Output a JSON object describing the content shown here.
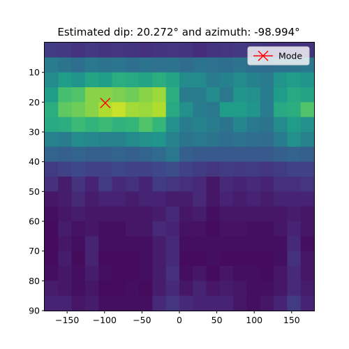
{
  "chart_data": {
    "type": "heatmap",
    "title": "Estimated dip: 20.272° and azimuth: -98.994°",
    "xlabel": "",
    "ylabel": "",
    "x_range": [
      -180,
      180
    ],
    "y_range": [
      0,
      90
    ],
    "y_inverted": true,
    "x_ticks": [
      -150,
      -100,
      -50,
      0,
      50,
      100,
      150
    ],
    "y_ticks": [
      10,
      20,
      30,
      40,
      50,
      60,
      70,
      80,
      90
    ],
    "grid": false,
    "colormap": "viridis",
    "grid_cols": 20,
    "grid_rows": 18,
    "cell_values_0_to_1": [
      [
        0.18,
        0.17,
        0.15,
        0.17,
        0.15,
        0.16,
        0.15,
        0.14,
        0.15,
        0.16,
        0.15,
        0.13,
        0.15,
        0.16,
        0.17,
        0.16,
        0.15,
        0.14,
        0.15,
        0.15
      ],
      [
        0.42,
        0.38,
        0.36,
        0.4,
        0.38,
        0.39,
        0.36,
        0.38,
        0.37,
        0.38,
        0.35,
        0.38,
        0.37,
        0.36,
        0.38,
        0.36,
        0.35,
        0.37,
        0.38,
        0.4
      ],
      [
        0.48,
        0.55,
        0.52,
        0.58,
        0.56,
        0.62,
        0.6,
        0.58,
        0.62,
        0.58,
        0.48,
        0.48,
        0.42,
        0.44,
        0.48,
        0.44,
        0.42,
        0.52,
        0.55,
        0.52
      ],
      [
        0.55,
        0.7,
        0.72,
        0.82,
        0.82,
        0.8,
        0.78,
        0.82,
        0.85,
        0.62,
        0.42,
        0.42,
        0.48,
        0.4,
        0.52,
        0.5,
        0.42,
        0.55,
        0.6,
        0.58
      ],
      [
        0.62,
        0.75,
        0.78,
        0.82,
        0.88,
        0.92,
        0.86,
        0.85,
        0.88,
        0.6,
        0.5,
        0.42,
        0.4,
        0.55,
        0.55,
        0.52,
        0.42,
        0.6,
        0.62,
        0.72
      ],
      [
        0.6,
        0.62,
        0.68,
        0.65,
        0.68,
        0.64,
        0.66,
        0.72,
        0.66,
        0.5,
        0.42,
        0.45,
        0.42,
        0.38,
        0.46,
        0.4,
        0.38,
        0.48,
        0.55,
        0.5
      ],
      [
        0.45,
        0.42,
        0.48,
        0.47,
        0.45,
        0.45,
        0.48,
        0.5,
        0.52,
        0.45,
        0.38,
        0.4,
        0.38,
        0.36,
        0.38,
        0.36,
        0.35,
        0.42,
        0.5,
        0.45
      ],
      [
        0.32,
        0.3,
        0.32,
        0.3,
        0.3,
        0.32,
        0.3,
        0.32,
        0.34,
        0.4,
        0.3,
        0.28,
        0.28,
        0.28,
        0.28,
        0.28,
        0.28,
        0.3,
        0.32,
        0.3
      ],
      [
        0.18,
        0.2,
        0.22,
        0.2,
        0.2,
        0.22,
        0.2,
        0.2,
        0.22,
        0.24,
        0.2,
        0.18,
        0.16,
        0.18,
        0.17,
        0.18,
        0.16,
        0.18,
        0.2,
        0.2
      ],
      [
        0.14,
        0.08,
        0.15,
        0.1,
        0.18,
        0.12,
        0.14,
        0.1,
        0.18,
        0.16,
        0.14,
        0.12,
        0.06,
        0.12,
        0.1,
        0.12,
        0.1,
        0.14,
        0.14,
        0.16
      ],
      [
        0.06,
        0.08,
        0.12,
        0.08,
        0.1,
        0.1,
        0.08,
        0.1,
        0.1,
        0.08,
        0.08,
        0.12,
        0.06,
        0.1,
        0.08,
        0.1,
        0.08,
        0.1,
        0.1,
        0.1
      ],
      [
        0.04,
        0.06,
        0.08,
        0.06,
        0.06,
        0.06,
        0.06,
        0.06,
        0.08,
        0.12,
        0.06,
        0.08,
        0.04,
        0.06,
        0.06,
        0.06,
        0.06,
        0.06,
        0.08,
        0.06
      ],
      [
        0.03,
        0.08,
        0.05,
        0.06,
        0.04,
        0.04,
        0.06,
        0.06,
        0.12,
        0.1,
        0.05,
        0.05,
        0.03,
        0.05,
        0.05,
        0.04,
        0.04,
        0.06,
        0.1,
        0.06
      ],
      [
        0.03,
        0.06,
        0.04,
        0.1,
        0.04,
        0.04,
        0.04,
        0.04,
        0.08,
        0.12,
        0.04,
        0.04,
        0.04,
        0.04,
        0.04,
        0.04,
        0.04,
        0.04,
        0.12,
        0.04
      ],
      [
        0.03,
        0.08,
        0.03,
        0.1,
        0.03,
        0.03,
        0.03,
        0.04,
        0.08,
        0.12,
        0.03,
        0.03,
        0.04,
        0.03,
        0.03,
        0.03,
        0.03,
        0.04,
        0.14,
        0.06
      ],
      [
        0.04,
        0.06,
        0.04,
        0.08,
        0.04,
        0.03,
        0.03,
        0.04,
        0.08,
        0.14,
        0.04,
        0.06,
        0.03,
        0.06,
        0.04,
        0.04,
        0.03,
        0.06,
        0.12,
        0.06
      ],
      [
        0.08,
        0.06,
        0.04,
        0.06,
        0.03,
        0.03,
        0.04,
        0.03,
        0.08,
        0.12,
        0.06,
        0.1,
        0.06,
        0.08,
        0.06,
        0.04,
        0.04,
        0.06,
        0.12,
        0.08
      ],
      [
        0.1,
        0.1,
        0.06,
        0.08,
        0.04,
        0.04,
        0.04,
        0.04,
        0.12,
        0.16,
        0.12,
        0.1,
        0.1,
        0.1,
        0.06,
        0.04,
        0.06,
        0.1,
        0.18,
        0.1
      ]
    ],
    "mode_marker": {
      "x": -98.994,
      "y": 20.272,
      "color": "#ff0000",
      "symbol": "x"
    },
    "legend": {
      "entries": [
        "Mode"
      ],
      "placement": "top-right"
    }
  }
}
